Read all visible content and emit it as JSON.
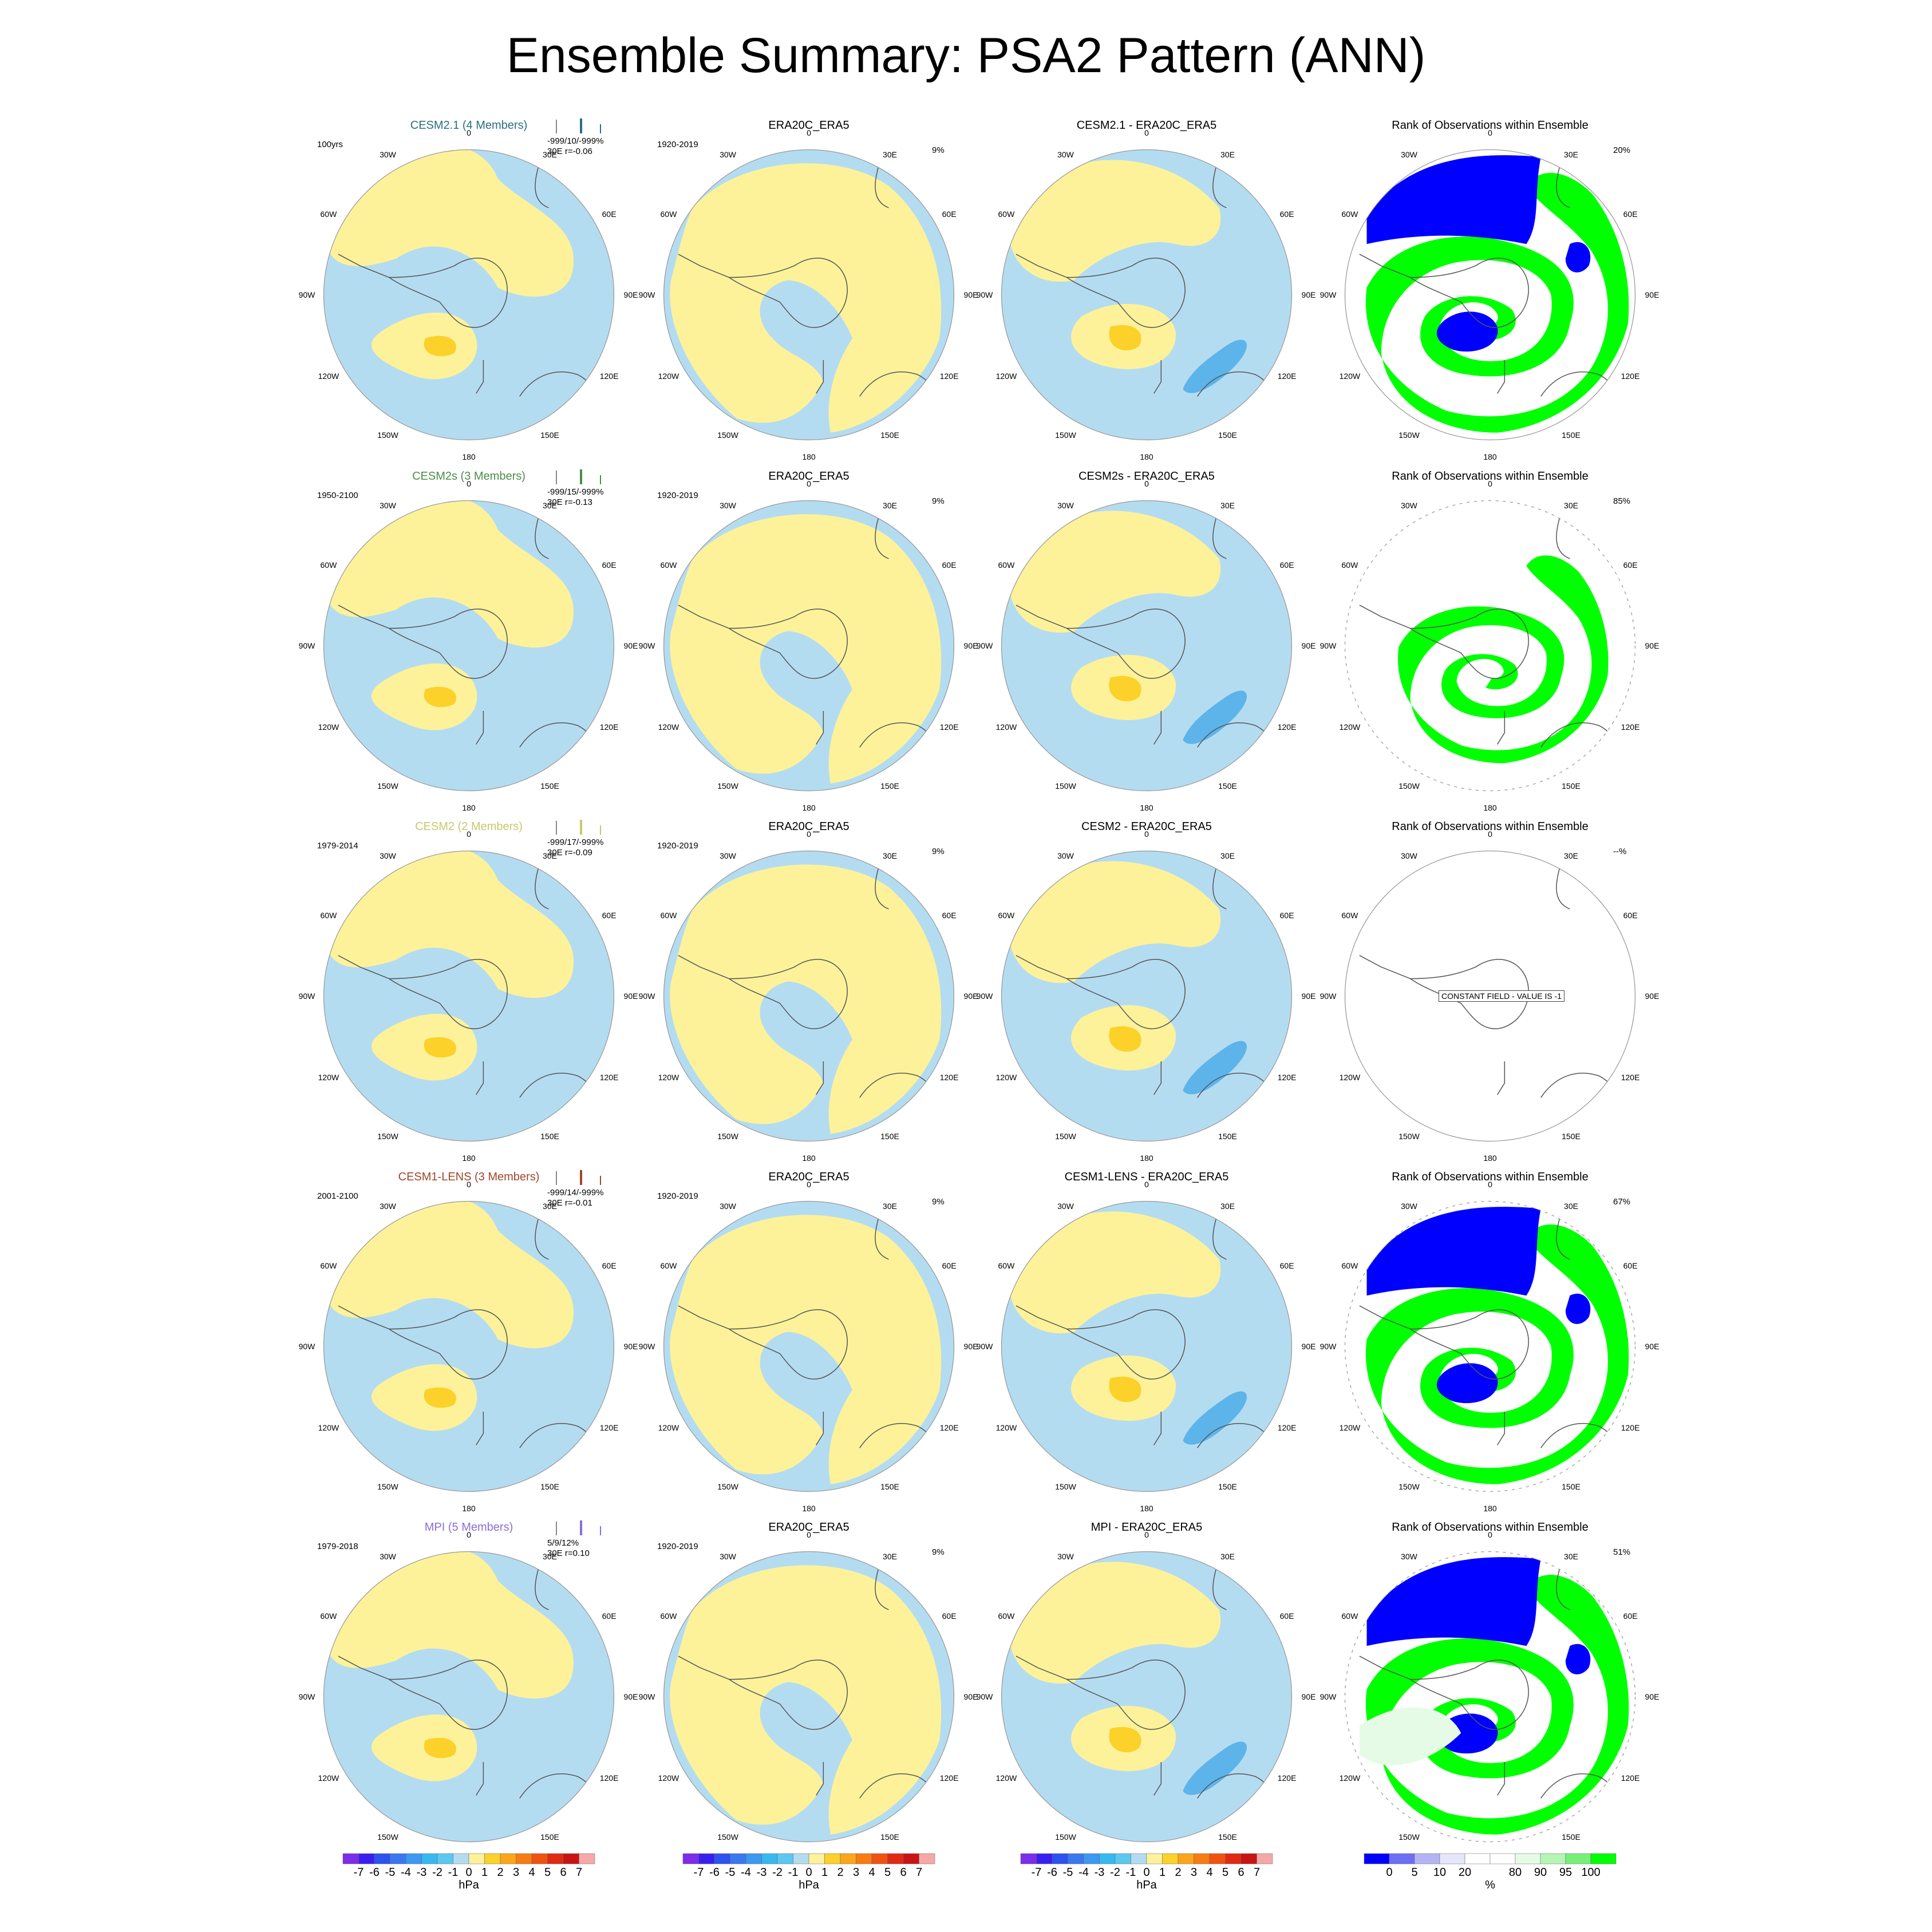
{
  "title": "Ensemble Summary: PSA2 Pattern (ANN)",
  "colors": {
    "neg1": "#b4dcf1",
    "pos1": "#fdf29a",
    "pos2": "#fbd12a",
    "neg2": "#5cb4ea",
    "rank_low": "#0000ff",
    "rank_high": "#00ff00",
    "rank_mid_high": "#e6fbe6",
    "coast": "#555555"
  },
  "lon_labels": [
    "0",
    "30E",
    "60E",
    "90E",
    "120E",
    "150E",
    "180",
    "150W",
    "120W",
    "90W",
    "60W",
    "30W"
  ],
  "rows": [
    {
      "model": {
        "title": "CESM2.1 (4 Members)",
        "title_color": "#2a6f80",
        "period": "100yrs",
        "stats1": "-999/10/-999%",
        "stats2": "30E r=-0.06"
      },
      "obs": {
        "title": "ERA20C_ERA5",
        "period": "1920-2019",
        "pct": "9%"
      },
      "diff": {
        "title": "CESM2.1 - ERA20C_ERA5"
      },
      "rank": {
        "title": "Rank of Observations within Ensemble",
        "pct": "20%"
      }
    },
    {
      "model": {
        "title": "CESM2s (3 Members)",
        "title_color": "#4c8c4c",
        "period": "1950-2100",
        "stats1": "-999/15/-999%",
        "stats2": "30E r=-0.13"
      },
      "obs": {
        "title": "ERA20C_ERA5",
        "period": "1920-2019",
        "pct": "9%"
      },
      "diff": {
        "title": "CESM2s - ERA20C_ERA5"
      },
      "rank": {
        "title": "Rank of Observations within Ensemble",
        "pct": "85%"
      }
    },
    {
      "model": {
        "title": "CESM2 (2 Members)",
        "title_color": "#c8c86e",
        "period": "1979-2014",
        "stats1": "-999/17/-999%",
        "stats2": "30E r=-0.09"
      },
      "obs": {
        "title": "ERA20C_ERA5",
        "period": "1920-2019",
        "pct": "9%"
      },
      "diff": {
        "title": "CESM2 - ERA20C_ERA5"
      },
      "rank": {
        "title": "Rank of Observations within Ensemble",
        "pct": "--%",
        "constant": "CONSTANT FIELD - VALUE IS -1"
      }
    },
    {
      "model": {
        "title": "CESM1-LENS (3 Members)",
        "title_color": "#a0462a",
        "period": "2001-2100",
        "stats1": "-999/14/-999%",
        "stats2": "30E r=-0.01"
      },
      "obs": {
        "title": "ERA20C_ERA5",
        "period": "1920-2019",
        "pct": "9%"
      },
      "diff": {
        "title": "CESM1-LENS - ERA20C_ERA5"
      },
      "rank": {
        "title": "Rank of Observations within Ensemble",
        "pct": "67%"
      }
    },
    {
      "model": {
        "title": "MPI (5 Members)",
        "title_color": "#8a6fd6",
        "period": "1979-2018",
        "stats1": "5/9/12%",
        "stats2": "30E r=0.10"
      },
      "obs": {
        "title": "ERA20C_ERA5",
        "period": "1920-2019",
        "pct": "9%"
      },
      "diff": {
        "title": "MPI - ERA20C_ERA5"
      },
      "rank": {
        "title": "Rank of Observations within Ensemble",
        "pct": "51%"
      }
    }
  ],
  "colorbars": {
    "hpa": {
      "unit": "hPa",
      "colors": [
        "#7d2ce8",
        "#3a1ef0",
        "#2c52ef",
        "#3a78f0",
        "#3c98f0",
        "#38b8f0",
        "#5cc8f0",
        "#b4dcf1",
        "#fdf29a",
        "#fbd12a",
        "#fba51a",
        "#f77c12",
        "#f0520f",
        "#e12a12",
        "#c81414",
        "#f5a8a8"
      ],
      "ticks": [
        "-7",
        "-6",
        "-5",
        "-4",
        "-3",
        "-2",
        "-1",
        "0",
        "1",
        "2",
        "3",
        "4",
        "5",
        "6",
        "7"
      ]
    },
    "rank": {
      "unit": "%",
      "colors": [
        "#0000ff",
        "#6e6ef5",
        "#b4b4f5",
        "#e6e6fa",
        "#ffffff",
        "#ffffff",
        "#e6fbe6",
        "#b4f5b4",
        "#78f078",
        "#00ff00"
      ],
      "ticks": [
        "0",
        "5",
        "10",
        "20",
        "80",
        "90",
        "95",
        "100"
      ]
    }
  },
  "chart_data": {
    "type": "heatmap",
    "title": "Ensemble Summary: PSA2 Pattern (ANN)",
    "projection": "south polar stereographic",
    "panels_per_row": [
      "model ensemble mean pattern",
      "ERA20C_ERA5 pattern",
      "model minus ERA20C_ERA5",
      "Rank of Observations within Ensemble"
    ],
    "units": {
      "pattern": "hPa",
      "rank": "%"
    },
    "contour_levels_hPa": [
      -7,
      -6,
      -5,
      -4,
      -3,
      -2,
      -1,
      0,
      1,
      2,
      3,
      4,
      5,
      6,
      7
    ],
    "rank_levels_pct": [
      0,
      5,
      10,
      20,
      80,
      90,
      95,
      100
    ],
    "rows": [
      {
        "model": "CESM2.1",
        "members": 4,
        "period": "100yrs",
        "stats": "-999/10/-999%",
        "r": -0.06,
        "rank_pct": 20
      },
      {
        "model": "CESM2s",
        "members": 3,
        "period": "1950-2100",
        "stats": "-999/15/-999%",
        "r": -0.13,
        "rank_pct": 85
      },
      {
        "model": "CESM2",
        "members": 2,
        "period": "1979-2014",
        "stats": "-999/17/-999%",
        "r": -0.09,
        "rank_pct": null
      },
      {
        "model": "CESM1-LENS",
        "members": 3,
        "period": "2001-2100",
        "stats": "-999/14/-999%",
        "r": -0.01,
        "rank_pct": 67
      },
      {
        "model": "MPI",
        "members": 5,
        "period": "1979-2018",
        "stats": "5/9/12%",
        "r": 0.1,
        "rank_pct": 51
      }
    ],
    "obs": {
      "name": "ERA20C_ERA5",
      "period": "1920-2019",
      "pct": 9
    }
  }
}
